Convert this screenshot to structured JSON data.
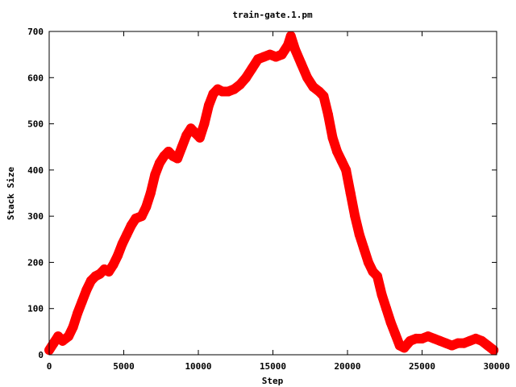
{
  "chart_data": {
    "type": "scatter",
    "title": "train-gate.1.pm",
    "xlabel": "Step",
    "ylabel": "Stack Size",
    "xlim": [
      0,
      30000
    ],
    "ylim": [
      0,
      700
    ],
    "xticks": [
      0,
      5000,
      10000,
      15000,
      20000,
      25000,
      30000
    ],
    "yticks": [
      0,
      100,
      200,
      300,
      400,
      500,
      600,
      700
    ],
    "xtick_labels": [
      "0",
      "5000",
      "10000",
      "15000",
      "20000",
      "25000",
      "30000"
    ],
    "ytick_labels": [
      "0",
      "100",
      "200",
      "300",
      "400",
      "500",
      "600",
      "700"
    ],
    "grid": false,
    "marker": "+",
    "marker_color": "#ff0000",
    "points": [
      [
        0,
        10
      ],
      [
        300,
        25
      ],
      [
        600,
        40
      ],
      [
        900,
        30
      ],
      [
        1300,
        40
      ],
      [
        1600,
        60
      ],
      [
        1900,
        90
      ],
      [
        2200,
        115
      ],
      [
        2500,
        140
      ],
      [
        2800,
        160
      ],
      [
        3100,
        170
      ],
      [
        3400,
        175
      ],
      [
        3700,
        185
      ],
      [
        4000,
        180
      ],
      [
        4300,
        195
      ],
      [
        4600,
        215
      ],
      [
        4900,
        240
      ],
      [
        5200,
        260
      ],
      [
        5500,
        280
      ],
      [
        5800,
        295
      ],
      [
        6200,
        300
      ],
      [
        6500,
        320
      ],
      [
        6800,
        350
      ],
      [
        7100,
        390
      ],
      [
        7400,
        415
      ],
      [
        7700,
        430
      ],
      [
        8000,
        440
      ],
      [
        8300,
        430
      ],
      [
        8600,
        425
      ],
      [
        8900,
        450
      ],
      [
        9200,
        475
      ],
      [
        9500,
        490
      ],
      [
        9800,
        480
      ],
      [
        10100,
        470
      ],
      [
        10400,
        500
      ],
      [
        10700,
        540
      ],
      [
        11000,
        565
      ],
      [
        11300,
        575
      ],
      [
        11600,
        570
      ],
      [
        12000,
        570
      ],
      [
        12400,
        575
      ],
      [
        12800,
        585
      ],
      [
        13200,
        600
      ],
      [
        13600,
        620
      ],
      [
        14000,
        640
      ],
      [
        14400,
        645
      ],
      [
        14800,
        650
      ],
      [
        15200,
        645
      ],
      [
        15600,
        650
      ],
      [
        16000,
        670
      ],
      [
        16200,
        690
      ],
      [
        16500,
        660
      ],
      [
        16900,
        630
      ],
      [
        17300,
        600
      ],
      [
        17700,
        580
      ],
      [
        18100,
        570
      ],
      [
        18400,
        560
      ],
      [
        18700,
        520
      ],
      [
        19000,
        470
      ],
      [
        19300,
        440
      ],
      [
        19600,
        420
      ],
      [
        19900,
        400
      ],
      [
        20200,
        350
      ],
      [
        20500,
        300
      ],
      [
        20800,
        260
      ],
      [
        21100,
        230
      ],
      [
        21400,
        200
      ],
      [
        21700,
        180
      ],
      [
        22000,
        170
      ],
      [
        22300,
        130
      ],
      [
        22600,
        100
      ],
      [
        22900,
        70
      ],
      [
        23200,
        45
      ],
      [
        23500,
        20
      ],
      [
        23800,
        15
      ],
      [
        24200,
        30
      ],
      [
        24600,
        35
      ],
      [
        25000,
        35
      ],
      [
        25400,
        40
      ],
      [
        25800,
        35
      ],
      [
        26200,
        30
      ],
      [
        26600,
        25
      ],
      [
        27000,
        20
      ],
      [
        27400,
        25
      ],
      [
        27800,
        25
      ],
      [
        28200,
        30
      ],
      [
        28600,
        35
      ],
      [
        29000,
        30
      ],
      [
        29400,
        20
      ],
      [
        29800,
        10
      ]
    ]
  }
}
